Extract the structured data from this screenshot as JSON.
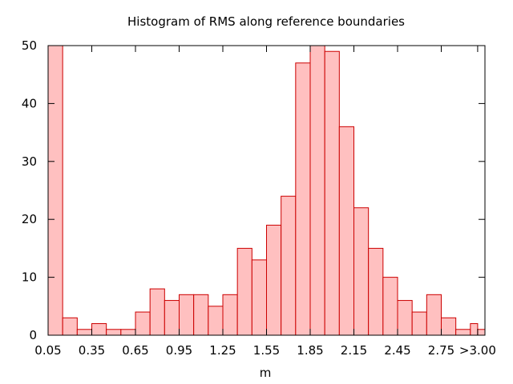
{
  "chart_data": {
    "type": "bar",
    "title": "Histogram of RMS along reference boundaries",
    "xlabel": "m",
    "ylabel": "",
    "ylim": [
      0,
      50
    ],
    "yticks": [
      0,
      10,
      20,
      30,
      40,
      50
    ],
    "bin_width": 0.1,
    "xlim": [
      0.05,
      3.05
    ],
    "xticks": [
      {
        "x": 0.05,
        "label": "0.05"
      },
      {
        "x": 0.35,
        "label": "0.35"
      },
      {
        "x": 0.65,
        "label": "0.65"
      },
      {
        "x": 0.95,
        "label": "0.95"
      },
      {
        "x": 1.25,
        "label": "1.25"
      },
      {
        "x": 1.55,
        "label": "1.55"
      },
      {
        "x": 1.85,
        "label": "1.85"
      },
      {
        "x": 2.15,
        "label": "2.15"
      },
      {
        "x": 2.45,
        "label": "2.45"
      },
      {
        "x": 2.75,
        "label": "2.75"
      },
      {
        "x": 3.0,
        "label": ">3.00"
      }
    ],
    "bins": [
      {
        "x0": 0.05,
        "x1": 0.15,
        "value": 50
      },
      {
        "x0": 0.15,
        "x1": 0.25,
        "value": 3
      },
      {
        "x0": 0.25,
        "x1": 0.35,
        "value": 1
      },
      {
        "x0": 0.35,
        "x1": 0.45,
        "value": 2
      },
      {
        "x0": 0.45,
        "x1": 0.55,
        "value": 1
      },
      {
        "x0": 0.55,
        "x1": 0.65,
        "value": 1
      },
      {
        "x0": 0.65,
        "x1": 0.75,
        "value": 4
      },
      {
        "x0": 0.75,
        "x1": 0.85,
        "value": 8
      },
      {
        "x0": 0.85,
        "x1": 0.95,
        "value": 6
      },
      {
        "x0": 0.95,
        "x1": 1.05,
        "value": 7
      },
      {
        "x0": 1.05,
        "x1": 1.15,
        "value": 7
      },
      {
        "x0": 1.15,
        "x1": 1.25,
        "value": 5
      },
      {
        "x0": 1.25,
        "x1": 1.35,
        "value": 7
      },
      {
        "x0": 1.35,
        "x1": 1.45,
        "value": 15
      },
      {
        "x0": 1.45,
        "x1": 1.55,
        "value": 13
      },
      {
        "x0": 1.55,
        "x1": 1.65,
        "value": 19
      },
      {
        "x0": 1.65,
        "x1": 1.75,
        "value": 24
      },
      {
        "x0": 1.75,
        "x1": 1.85,
        "value": 47
      },
      {
        "x0": 1.85,
        "x1": 1.95,
        "value": 50
      },
      {
        "x0": 1.95,
        "x1": 2.05,
        "value": 49
      },
      {
        "x0": 2.05,
        "x1": 2.15,
        "value": 36
      },
      {
        "x0": 2.15,
        "x1": 2.25,
        "value": 22
      },
      {
        "x0": 2.25,
        "x1": 2.35,
        "value": 15
      },
      {
        "x0": 2.35,
        "x1": 2.45,
        "value": 10
      },
      {
        "x0": 2.45,
        "x1": 2.55,
        "value": 6
      },
      {
        "x0": 2.55,
        "x1": 2.65,
        "value": 4
      },
      {
        "x0": 2.65,
        "x1": 2.75,
        "value": 7
      },
      {
        "x0": 2.75,
        "x1": 2.85,
        "value": 3
      },
      {
        "x0": 2.85,
        "x1": 2.95,
        "value": 1
      },
      {
        "x0": 2.95,
        "x1": 3.0,
        "value": 2
      },
      {
        "x0": 3.0,
        "x1": 3.05,
        "value": 1
      }
    ],
    "grid": false,
    "legend": "none",
    "colors": {
      "bar_fill": "#ffc0c0",
      "bar_stroke": "#cc0000",
      "axis": "#000000"
    }
  }
}
